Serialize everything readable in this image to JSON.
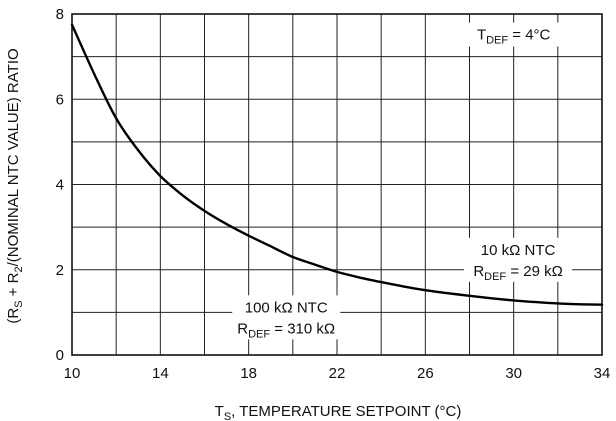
{
  "chart_data": {
    "type": "line",
    "title": "",
    "xlabel": {
      "pre": "T",
      "sub": "S",
      "post": ", TEMPERATURE SETPOINT (°C)"
    },
    "ylabel": {
      "p1": "(R",
      "s1": "S",
      "p2": " + R",
      "s2": "2",
      "p3": "/(NOMINAL NTC VALUE) RATIO"
    },
    "xlim": [
      10,
      34
    ],
    "ylim": [
      0,
      8
    ],
    "x_ticks": [
      10,
      14,
      18,
      22,
      26,
      30,
      34
    ],
    "y_ticks": [
      0,
      2,
      4,
      6,
      8
    ],
    "x_grid_step": 2,
    "y_grid_step": 1,
    "grid": true,
    "series": [
      {
        "x": [
          10,
          11,
          12,
          13,
          14,
          15,
          16,
          17,
          18,
          19,
          20,
          21,
          22,
          23,
          24,
          25,
          26,
          27,
          28,
          29,
          30,
          31,
          32,
          33,
          34
        ],
        "y": [
          7.75,
          6.6,
          5.55,
          4.8,
          4.2,
          3.75,
          3.38,
          3.07,
          2.8,
          2.55,
          2.3,
          2.12,
          1.95,
          1.82,
          1.71,
          1.61,
          1.52,
          1.45,
          1.39,
          1.33,
          1.28,
          1.24,
          1.21,
          1.19,
          1.18
        ]
      }
    ],
    "annotations": [
      {
        "line1": "T",
        "line1_sub": "DEF",
        "line1_post": " = 4°C",
        "x": 30,
        "y": 7.4
      },
      {
        "line1": "10 kΩ NTC",
        "line2": "R",
        "line2_sub": "DEF",
        "line2_post": " = 29 kΩ",
        "x": 30.2,
        "y": 2.35
      },
      {
        "line1": "100 kΩ NTC",
        "line2": "R",
        "line2_sub": "DEF",
        "line2_post": " = 310 kΩ",
        "x": 19.7,
        "y": 1.0
      }
    ]
  }
}
